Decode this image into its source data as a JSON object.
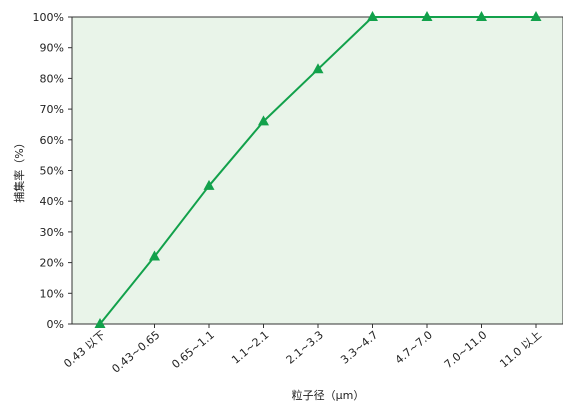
{
  "chart_data": {
    "type": "line",
    "categories": [
      "0.43 以下",
      "0.43~0.65",
      "0.65~1.1",
      "1.1~2.1",
      "2.1~3.3",
      "3.3~4.7",
      "4.7~7.0",
      "7.0~11.0",
      "11.0 以上"
    ],
    "series": [
      {
        "values": [
          0,
          22,
          45,
          66,
          83,
          100,
          100,
          100,
          100
        ]
      }
    ],
    "xlabel": "粒子径（μm）",
    "ylabel": "捕集率（%）",
    "ylim": [
      0,
      100
    ],
    "yticks": [
      0,
      10,
      20,
      30,
      40,
      50,
      60,
      70,
      80,
      90,
      100
    ],
    "ytick_format": "{v}%",
    "grid": false,
    "legend": "none",
    "colors": {
      "line": "#12a14b",
      "marker": "#12a14b",
      "plot_background": "#e9f4e9",
      "axis": "#333333"
    }
  }
}
